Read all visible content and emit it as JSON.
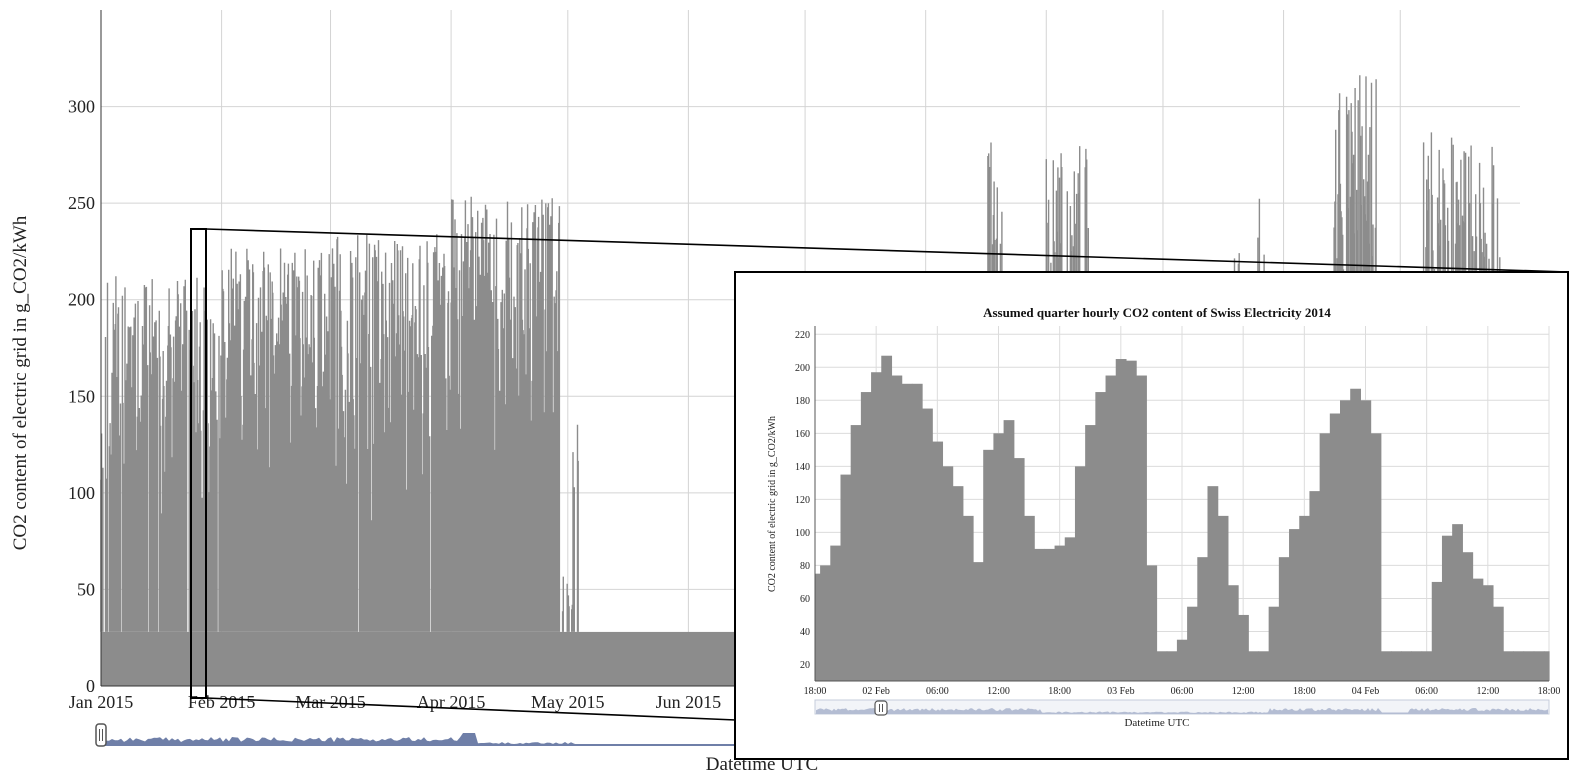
{
  "chart_data": [
    {
      "type": "bar",
      "title": "",
      "xlabel": "Datetime UTC",
      "ylabel": "CO2 content of electric grid in g_CO2/kWh",
      "x_tick_labels": [
        "Jan 2015",
        "Feb 2015",
        "Mar 2015",
        "Apr 2015",
        "May 2015",
        "Jun 2015"
      ],
      "y_tick_labels": [
        "0",
        "50",
        "100",
        "150",
        "200",
        "250",
        "300"
      ],
      "ylim": [
        0,
        350
      ],
      "baseline_value": 28,
      "grid": true,
      "series_color": "#8c8c8c",
      "range_selector_color": "#6f7fa8",
      "monthly_peak_values": [
        {
          "period": "Jan 2015",
          "peak": 213
        },
        {
          "period": "Feb 2015",
          "peak": 227
        },
        {
          "period": "Mar 2015",
          "peak": 234
        },
        {
          "period": "Apr 2015",
          "peak": 254
        },
        {
          "period": "May 2015",
          "peak": 138
        },
        {
          "period": "Jun 2015",
          "peak": 57
        },
        {
          "period": "Oct 2015",
          "peak": 283
        },
        {
          "period": "Nov 2015",
          "peak": 320
        },
        {
          "period": "Dec 2015",
          "peak": 287
        }
      ]
    },
    {
      "type": "bar",
      "title": "Assumed quarter hourly CO2 content of Swiss Electricity 2014",
      "xlabel": "Datetime UTC",
      "ylabel": "CO2 content of electric grid in g_CO2/kWh",
      "x_tick_labels": [
        "18:00",
        "02 Feb",
        "06:00",
        "12:00",
        "18:00",
        "03 Feb",
        "06:00",
        "12:00",
        "18:00",
        "04 Feb",
        "06:00",
        "12:00",
        "18:00"
      ],
      "y_tick_labels": [
        "20",
        "40",
        "60",
        "80",
        "100",
        "120",
        "140",
        "160",
        "180",
        "200",
        "220"
      ],
      "ylim": [
        10,
        225
      ],
      "grid": true,
      "series_color": "#8c8c8c",
      "hours_from_start": [
        0,
        1,
        2,
        3,
        4,
        5,
        6,
        7,
        8,
        9,
        10,
        11,
        12,
        13,
        14,
        15,
        16,
        17,
        18,
        19,
        20,
        21,
        22,
        23,
        24,
        25,
        26,
        27,
        28,
        29,
        30,
        31,
        32,
        33,
        34,
        35,
        36,
        37,
        38,
        39,
        40,
        41,
        42,
        43,
        44,
        45,
        46,
        47,
        48,
        49,
        50,
        51,
        52,
        53,
        54,
        55,
        56,
        57,
        58,
        59,
        60,
        61,
        62,
        63,
        64,
        65,
        66,
        67,
        68,
        69,
        70,
        71,
        72
      ],
      "values": [
        75,
        80,
        92,
        135,
        165,
        185,
        197,
        207,
        195,
        190,
        190,
        175,
        155,
        140,
        128,
        110,
        82,
        150,
        160,
        168,
        145,
        110,
        90,
        90,
        92,
        97,
        140,
        165,
        185,
        195,
        205,
        204,
        195,
        80,
        28,
        28,
        35,
        55,
        85,
        128,
        110,
        68,
        50,
        28,
        28,
        55,
        85,
        102,
        110,
        125,
        160,
        172,
        180,
        187,
        180,
        160,
        28,
        28,
        28,
        28,
        28,
        70,
        98,
        105,
        88,
        72,
        68,
        55,
        28,
        28,
        28,
        28,
        28
      ]
    }
  ]
}
